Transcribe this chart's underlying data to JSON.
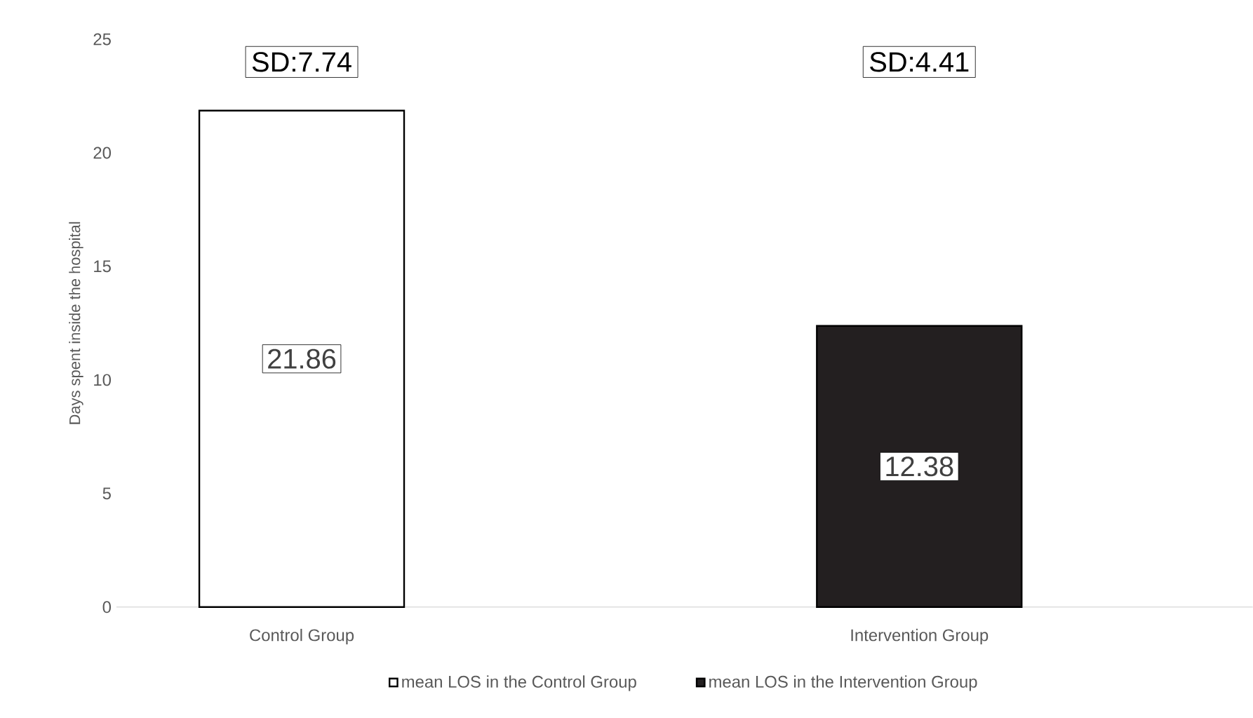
{
  "chart_data": {
    "type": "bar",
    "categories": [
      "Control Group",
      "Intervention Group"
    ],
    "series": [
      {
        "name": "mean LOS in the Control Group",
        "color": "#ffffff",
        "values": [
          21.86,
          null
        ]
      },
      {
        "name": "mean LOS in the Intervention Group",
        "color": "#231f20",
        "values": [
          null,
          12.38
        ]
      }
    ],
    "ylabel": "Days spent inside the hospital",
    "ylim": [
      0,
      25
    ],
    "yticks": [
      0,
      5,
      10,
      15,
      20,
      25
    ],
    "data_labels": true,
    "legend": "bottom",
    "annotations": [
      "SD:7.74",
      "SD:4.41"
    ]
  }
}
